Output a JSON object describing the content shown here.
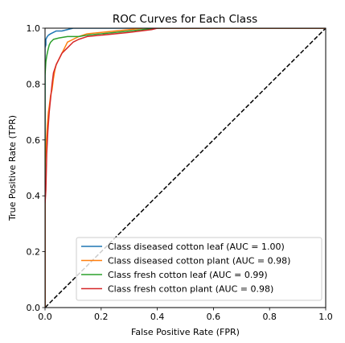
{
  "chart_data": {
    "type": "line",
    "title": "ROC Curves for Each Class",
    "xlabel": "False Positive Rate (FPR)",
    "ylabel": "True Positive Rate (TPR)",
    "xlim": [
      0.0,
      1.0
    ],
    "ylim": [
      0.0,
      1.0
    ],
    "x_ticks": [
      "0.0",
      "0.2",
      "0.4",
      "0.6",
      "0.8",
      "1.0"
    ],
    "y_ticks": [
      "0.0",
      "0.2",
      "0.4",
      "0.6",
      "0.8",
      "1.0"
    ],
    "grid": false,
    "legend_position": "lower-right",
    "series": [
      {
        "name": "Class diseased cotton leaf (AUC = 1.00)",
        "color": "#1f77b4",
        "x": [
          0.0,
          0.0,
          0.003,
          0.003,
          0.008,
          0.012,
          0.02,
          0.03,
          0.04,
          0.06,
          0.08,
          0.1,
          0.12,
          0.15,
          1.0
        ],
        "y": [
          0.0,
          0.93,
          0.94,
          0.96,
          0.97,
          0.975,
          0.98,
          0.985,
          0.99,
          0.99,
          0.995,
          1.0,
          1.0,
          1.0,
          1.0
        ]
      },
      {
        "name": "Class diseased cotton plant (AUC = 0.98)",
        "color": "#ff7f0e",
        "x": [
          0.0,
          0.0,
          0.005,
          0.008,
          0.012,
          0.015,
          0.02,
          0.025,
          0.03,
          0.035,
          0.04,
          0.05,
          0.06,
          0.07,
          0.08,
          0.1,
          0.12,
          0.15,
          0.2,
          0.25,
          0.3,
          0.35,
          0.4,
          1.0
        ],
        "y": [
          0.0,
          0.5,
          0.6,
          0.65,
          0.7,
          0.72,
          0.76,
          0.78,
          0.82,
          0.85,
          0.87,
          0.89,
          0.91,
          0.93,
          0.95,
          0.96,
          0.97,
          0.98,
          0.985,
          0.99,
          0.995,
          1.0,
          1.0,
          1.0
        ]
      },
      {
        "name": "Class fresh cotton leaf (AUC = 0.99)",
        "color": "#2ca02c",
        "x": [
          0.0,
          0.0,
          0.003,
          0.006,
          0.01,
          0.015,
          0.02,
          0.03,
          0.05,
          0.08,
          0.12,
          0.15,
          0.2,
          0.3,
          0.35,
          0.4,
          0.42,
          1.0
        ],
        "y": [
          0.0,
          0.83,
          0.88,
          0.9,
          0.92,
          0.94,
          0.95,
          0.96,
          0.965,
          0.97,
          0.97,
          0.975,
          0.98,
          0.99,
          0.995,
          1.0,
          1.0,
          1.0
        ]
      },
      {
        "name": "Class fresh cotton plant (AUC = 0.98)",
        "color": "#d62728",
        "x": [
          0.0,
          0.0,
          0.003,
          0.006,
          0.01,
          0.015,
          0.02,
          0.025,
          0.03,
          0.04,
          0.05,
          0.06,
          0.08,
          0.1,
          0.12,
          0.15,
          0.2,
          0.3,
          0.38,
          0.4,
          1.0
        ],
        "y": [
          0.0,
          0.37,
          0.42,
          0.55,
          0.63,
          0.7,
          0.75,
          0.8,
          0.84,
          0.87,
          0.89,
          0.91,
          0.93,
          0.95,
          0.96,
          0.97,
          0.975,
          0.985,
          0.995,
          1.0,
          1.0
        ]
      }
    ],
    "reference_line": {
      "x": [
        0,
        1
      ],
      "y": [
        0,
        1
      ],
      "color": "#000000",
      "style": "dashed"
    }
  }
}
